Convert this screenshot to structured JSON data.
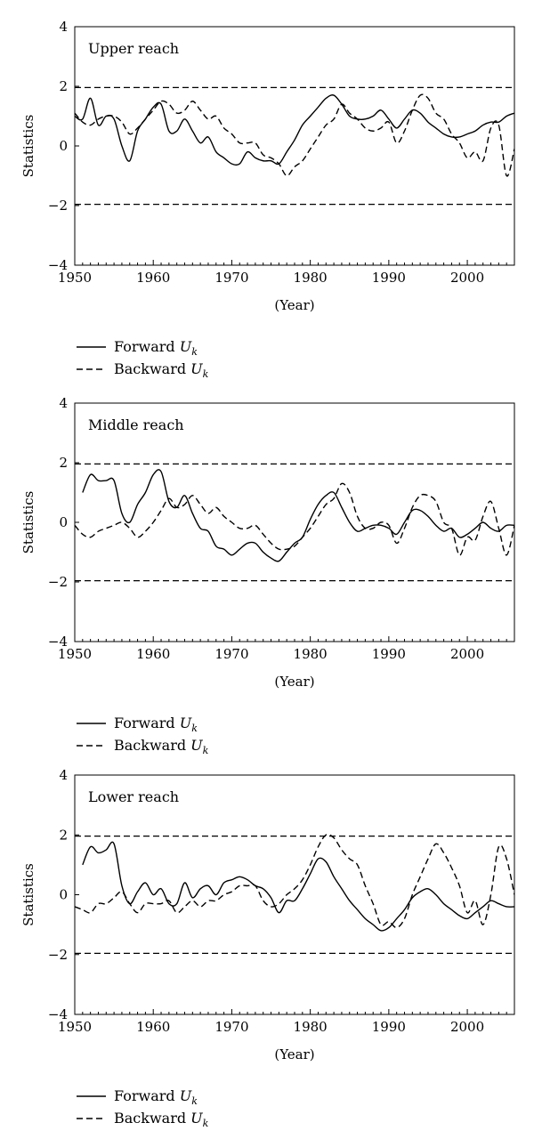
{
  "chart_data": [
    {
      "type": "line",
      "title": "Upper reach",
      "xlabel": "(Year)",
      "ylabel": "Statistics",
      "xlim": [
        1950,
        2006
      ],
      "ylim": [
        -4,
        4
      ],
      "xticks": [
        1950,
        1960,
        1970,
        1980,
        1990,
        2000
      ],
      "yticks": [
        -4,
        -2,
        0,
        2,
        4
      ],
      "reference_lines": [
        1.96,
        -1.96
      ],
      "legend": "below",
      "series": [
        {
          "name": "Forward U",
          "name_subscript": "k",
          "style": "solid",
          "x": [
            1950,
            1951,
            1952,
            1953,
            1954,
            1955,
            1956,
            1957,
            1958,
            1959,
            1960,
            1961,
            1962,
            1963,
            1964,
            1965,
            1966,
            1967,
            1968,
            1969,
            1970,
            1971,
            1972,
            1973,
            1974,
            1975,
            1976,
            1977,
            1978,
            1979,
            1980,
            1981,
            1982,
            1983,
            1984,
            1985,
            1986,
            1987,
            1988,
            1989,
            1990,
            1991,
            1992,
            1993,
            1994,
            1995,
            1996,
            1997,
            1998,
            1999,
            2000,
            2001,
            2002,
            2003,
            2004,
            2005,
            2006
          ],
          "y": [
            1.0,
            0.9,
            1.6,
            0.7,
            1.0,
            0.9,
            0.0,
            -0.5,
            0.5,
            0.9,
            1.3,
            1.4,
            0.5,
            0.5,
            0.9,
            0.5,
            0.1,
            0.3,
            -0.2,
            -0.4,
            -0.6,
            -0.6,
            -0.2,
            -0.4,
            -0.5,
            -0.5,
            -0.6,
            -0.2,
            0.2,
            0.7,
            1.0,
            1.3,
            1.6,
            1.7,
            1.4,
            1.0,
            0.9,
            0.9,
            1.0,
            1.2,
            0.9,
            0.6,
            0.9,
            1.2,
            1.1,
            0.8,
            0.6,
            0.4,
            0.3,
            0.3,
            0.4,
            0.5,
            0.7,
            0.8,
            0.8,
            1.0,
            1.1
          ]
        },
        {
          "name": "Backward U",
          "name_subscript": "k",
          "style": "dashed",
          "x": [
            1950,
            1951,
            1952,
            1953,
            1954,
            1955,
            1956,
            1957,
            1958,
            1959,
            1960,
            1961,
            1962,
            1963,
            1964,
            1965,
            1966,
            1967,
            1968,
            1969,
            1970,
            1971,
            1972,
            1973,
            1974,
            1975,
            1976,
            1977,
            1978,
            1979,
            1980,
            1981,
            1982,
            1983,
            1984,
            1985,
            1986,
            1987,
            1988,
            1989,
            1990,
            1991,
            1992,
            1993,
            1994,
            1995,
            1996,
            1997,
            1998,
            1999,
            2000,
            2001,
            2002,
            2003,
            2004,
            2005,
            2006
          ],
          "y": [
            1.1,
            0.8,
            0.7,
            0.9,
            1.0,
            1.0,
            0.8,
            0.4,
            0.6,
            0.9,
            1.2,
            1.5,
            1.4,
            1.1,
            1.2,
            1.5,
            1.2,
            0.9,
            1.0,
            0.6,
            0.4,
            0.1,
            0.1,
            0.1,
            -0.3,
            -0.4,
            -0.6,
            -1.0,
            -0.7,
            -0.5,
            -0.1,
            0.3,
            0.7,
            0.9,
            1.4,
            1.1,
            0.9,
            0.6,
            0.5,
            0.6,
            0.8,
            0.1,
            0.5,
            1.2,
            1.7,
            1.6,
            1.1,
            0.9,
            0.4,
            0.1,
            -0.4,
            -0.2,
            -0.5,
            0.6,
            0.7,
            -1.0,
            -0.1
          ]
        }
      ]
    },
    {
      "type": "line",
      "title": "Middle reach",
      "xlabel": "(Year)",
      "ylabel": "Statistics",
      "xlim": [
        1950,
        2006
      ],
      "ylim": [
        -4,
        4
      ],
      "xticks": [
        1950,
        1960,
        1970,
        1980,
        1990,
        2000
      ],
      "yticks": [
        -4,
        -2,
        0,
        2,
        4
      ],
      "reference_lines": [
        1.96,
        -1.96
      ],
      "legend": "below",
      "series": [
        {
          "name": "Forward U",
          "name_subscript": "k",
          "style": "solid",
          "x": [
            1951,
            1952,
            1953,
            1954,
            1955,
            1956,
            1957,
            1958,
            1959,
            1960,
            1961,
            1962,
            1963,
            1964,
            1965,
            1966,
            1967,
            1968,
            1969,
            1970,
            1971,
            1972,
            1973,
            1974,
            1975,
            1976,
            1977,
            1978,
            1979,
            1980,
            1981,
            1982,
            1983,
            1984,
            1985,
            1986,
            1987,
            1988,
            1989,
            1990,
            1991,
            1992,
            1993,
            1994,
            1995,
            1996,
            1997,
            1998,
            1999,
            2000,
            2001,
            2002,
            2003,
            2004,
            2005,
            2006
          ],
          "y": [
            1.0,
            1.6,
            1.4,
            1.4,
            1.4,
            0.3,
            0.0,
            0.6,
            1.0,
            1.6,
            1.7,
            0.7,
            0.5,
            0.9,
            0.3,
            -0.2,
            -0.3,
            -0.8,
            -0.9,
            -1.1,
            -0.9,
            -0.7,
            -0.7,
            -1.0,
            -1.2,
            -1.3,
            -1.0,
            -0.7,
            -0.5,
            0.1,
            0.6,
            0.9,
            1.0,
            0.5,
            0.0,
            -0.3,
            -0.2,
            -0.1,
            -0.1,
            -0.2,
            -0.4,
            0.0,
            0.4,
            0.4,
            0.2,
            -0.1,
            -0.3,
            -0.2,
            -0.5,
            -0.4,
            -0.2,
            0.0,
            -0.2,
            -0.3,
            -0.1,
            -0.1
          ]
        },
        {
          "name": "Backward U",
          "name_subscript": "k",
          "style": "dashed",
          "x": [
            1950,
            1951,
            1952,
            1953,
            1954,
            1955,
            1956,
            1957,
            1958,
            1959,
            1960,
            1961,
            1962,
            1963,
            1964,
            1965,
            1966,
            1967,
            1968,
            1969,
            1970,
            1971,
            1972,
            1973,
            1974,
            1975,
            1976,
            1977,
            1978,
            1979,
            1980,
            1981,
            1982,
            1983,
            1984,
            1985,
            1986,
            1987,
            1988,
            1989,
            1990,
            1991,
            1992,
            1993,
            1994,
            1995,
            1996,
            1997,
            1998,
            1999,
            2000,
            2001,
            2002,
            2003,
            2004,
            2005,
            2006
          ],
          "y": [
            -0.1,
            -0.4,
            -0.5,
            -0.3,
            -0.2,
            -0.1,
            0.0,
            -0.2,
            -0.5,
            -0.3,
            0.0,
            0.4,
            0.8,
            0.5,
            0.6,
            0.9,
            0.6,
            0.3,
            0.5,
            0.2,
            0.0,
            -0.2,
            -0.2,
            -0.1,
            -0.4,
            -0.7,
            -0.9,
            -0.9,
            -0.8,
            -0.5,
            -0.2,
            0.2,
            0.6,
            0.8,
            1.3,
            1.0,
            0.2,
            -0.2,
            -0.2,
            0.0,
            -0.1,
            -0.7,
            -0.2,
            0.5,
            0.9,
            0.9,
            0.7,
            0.0,
            -0.2,
            -1.1,
            -0.5,
            -0.6,
            0.2,
            0.7,
            -0.2,
            -1.1,
            -0.1
          ]
        }
      ]
    },
    {
      "type": "line",
      "title": "Lower reach",
      "xlabel": "(Year)",
      "ylabel": "Statistics",
      "xlim": [
        1950,
        2006
      ],
      "ylim": [
        -4,
        4
      ],
      "xticks": [
        1950,
        1960,
        1970,
        1980,
        1990,
        2000
      ],
      "yticks": [
        -4,
        -2,
        0,
        2,
        4
      ],
      "reference_lines": [
        1.96,
        -1.96
      ],
      "legend": "below",
      "series": [
        {
          "name": "Forward U",
          "name_subscript": "k",
          "style": "solid",
          "x": [
            1951,
            1952,
            1953,
            1954,
            1955,
            1956,
            1957,
            1958,
            1959,
            1960,
            1961,
            1962,
            1963,
            1964,
            1965,
            1966,
            1967,
            1968,
            1969,
            1970,
            1971,
            1972,
            1973,
            1974,
            1975,
            1976,
            1977,
            1978,
            1979,
            1980,
            1981,
            1982,
            1983,
            1984,
            1985,
            1986,
            1987,
            1988,
            1989,
            1990,
            1991,
            1992,
            1993,
            1994,
            1995,
            1996,
            1997,
            1998,
            1999,
            2000,
            2001,
            2002,
            2003,
            2004,
            2005,
            2006
          ],
          "y": [
            1.0,
            1.6,
            1.4,
            1.5,
            1.7,
            0.3,
            -0.3,
            0.1,
            0.4,
            0.0,
            0.2,
            -0.3,
            -0.3,
            0.4,
            -0.1,
            0.2,
            0.3,
            0.0,
            0.4,
            0.5,
            0.6,
            0.5,
            0.3,
            0.2,
            -0.1,
            -0.6,
            -0.2,
            -0.2,
            0.2,
            0.7,
            1.2,
            1.1,
            0.6,
            0.2,
            -0.2,
            -0.5,
            -0.8,
            -1.0,
            -1.2,
            -1.1,
            -0.8,
            -0.5,
            -0.1,
            0.1,
            0.2,
            0.0,
            -0.3,
            -0.5,
            -0.7,
            -0.8,
            -0.6,
            -0.4,
            -0.2,
            -0.3,
            -0.4,
            -0.4
          ]
        },
        {
          "name": "Backward U",
          "name_subscript": "k",
          "style": "dashed",
          "x": [
            1950,
            1951,
            1952,
            1953,
            1954,
            1955,
            1956,
            1957,
            1958,
            1959,
            1960,
            1961,
            1962,
            1963,
            1964,
            1965,
            1966,
            1967,
            1968,
            1969,
            1970,
            1971,
            1972,
            1973,
            1974,
            1975,
            1976,
            1977,
            1978,
            1979,
            1980,
            1981,
            1982,
            1983,
            1984,
            1985,
            1986,
            1987,
            1988,
            1989,
            1990,
            1991,
            1992,
            1993,
            1994,
            1995,
            1996,
            1997,
            1998,
            1999,
            2000,
            2001,
            2002,
            2003,
            2004,
            2005,
            2006
          ],
          "y": [
            -0.4,
            -0.5,
            -0.6,
            -0.3,
            -0.3,
            -0.1,
            0.1,
            -0.3,
            -0.6,
            -0.3,
            -0.3,
            -0.3,
            -0.2,
            -0.6,
            -0.4,
            -0.2,
            -0.4,
            -0.2,
            -0.2,
            0.0,
            0.1,
            0.3,
            0.3,
            0.3,
            -0.2,
            -0.4,
            -0.3,
            0.0,
            0.2,
            0.5,
            1.0,
            1.6,
            2.0,
            1.9,
            1.5,
            1.2,
            1.0,
            0.3,
            -0.3,
            -1.0,
            -0.9,
            -1.1,
            -0.8,
            0.0,
            0.6,
            1.2,
            1.7,
            1.4,
            0.9,
            0.3,
            -0.6,
            -0.2,
            -1.0,
            0.0,
            1.6,
            1.2,
            0.0
          ]
        }
      ]
    }
  ]
}
